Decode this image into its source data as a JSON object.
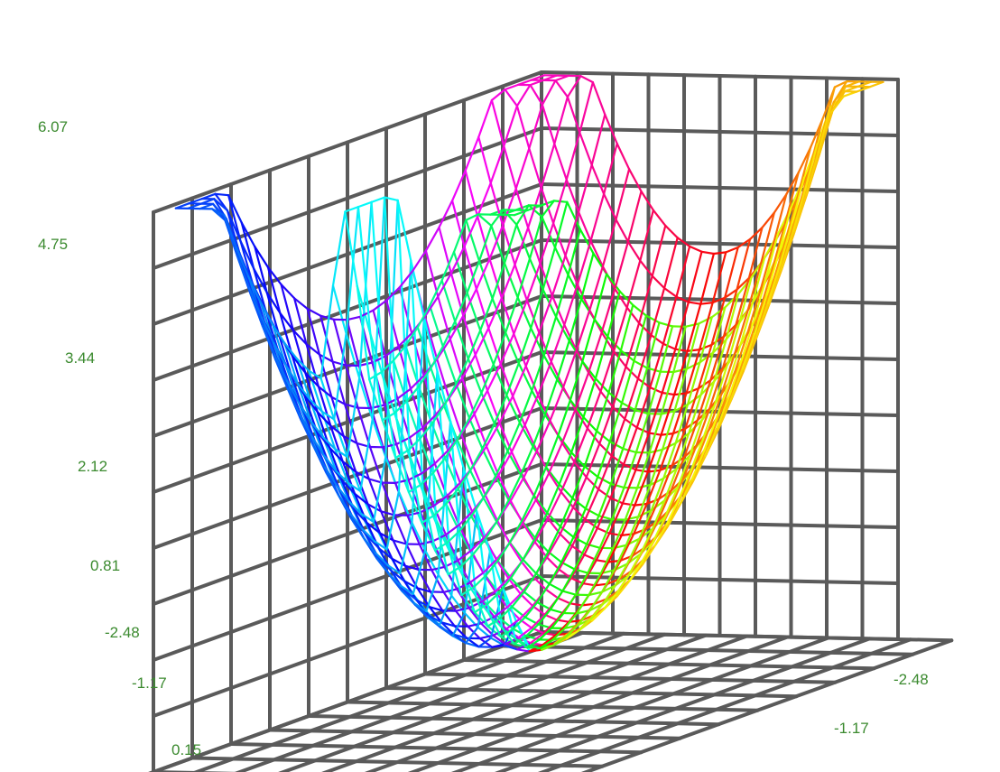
{
  "chart_data": {
    "type": "surface",
    "grid": true,
    "z_ticks": [
      "6.07",
      "4.75",
      "3.44",
      "2.12",
      "0.81"
    ],
    "x_ticks": [
      "-2.48",
      "-1.17",
      "0.15"
    ],
    "y_ticks": [
      "-2.48",
      "-1.17"
    ],
    "zlim": [
      0.81,
      6.07
    ],
    "xlim": [
      -2.48,
      2.48
    ],
    "ylim": [
      -2.48,
      2.48
    ],
    "colormap": "hue by complex argument (rainbow)"
  },
  "colors": {
    "frame": "#5a5a5a",
    "tick_label": "#3b8a2f"
  }
}
